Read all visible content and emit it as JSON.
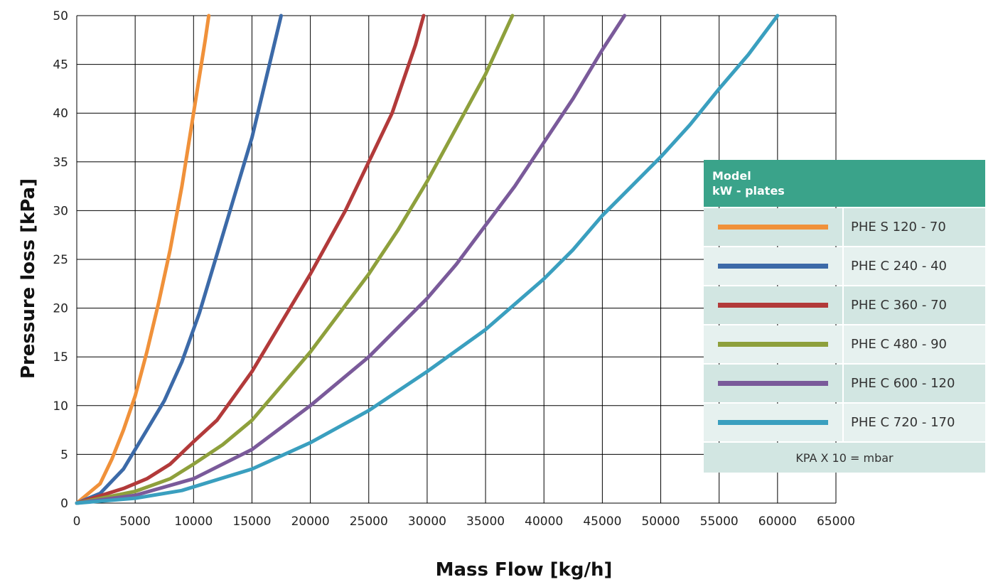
{
  "chart_data": {
    "type": "line",
    "title": "",
    "xlabel": "Mass Flow [kg/h]",
    "ylabel": "Pressure loss [kPa]",
    "xlim": [
      0,
      65000
    ],
    "ylim": [
      0,
      50
    ],
    "xticks": [
      "0",
      "5000",
      "10000",
      "15000",
      "20000",
      "25000",
      "30000",
      "35000",
      "40000",
      "45000",
      "50000",
      "55000",
      "60000",
      "65000"
    ],
    "yticks": [
      "0",
      "5",
      "10",
      "15",
      "20",
      "25",
      "30",
      "35",
      "40",
      "45",
      "50"
    ],
    "grid": true,
    "legend_placement": "right",
    "series": [
      {
        "name": "PHE S 120 - 70",
        "color": "#f0913a",
        "points": [
          [
            0,
            0
          ],
          [
            2000,
            2
          ],
          [
            3000,
            4.5
          ],
          [
            4000,
            7.5
          ],
          [
            5000,
            11
          ],
          [
            6000,
            15.5
          ],
          [
            7000,
            20.5
          ],
          [
            8000,
            26
          ],
          [
            9000,
            32.5
          ],
          [
            10000,
            40
          ],
          [
            11000,
            47.5
          ],
          [
            11300,
            50
          ]
        ]
      },
      {
        "name": "PHE C 240 - 40",
        "color": "#3c6aa8",
        "points": [
          [
            0,
            0
          ],
          [
            2000,
            1
          ],
          [
            4000,
            3.5
          ],
          [
            6000,
            7.5
          ],
          [
            7500,
            10.5
          ],
          [
            9000,
            14.5
          ],
          [
            10500,
            19.5
          ],
          [
            12000,
            25.5
          ],
          [
            13500,
            31.5
          ],
          [
            15000,
            37.5
          ],
          [
            16500,
            45
          ],
          [
            17500,
            50
          ]
        ]
      },
      {
        "name": "PHE C 360 - 70",
        "color": "#b23a3a",
        "points": [
          [
            0,
            0
          ],
          [
            4000,
            1.5
          ],
          [
            6000,
            2.5
          ],
          [
            8000,
            4
          ],
          [
            10000,
            6.3
          ],
          [
            12000,
            8.5
          ],
          [
            15000,
            13.5
          ],
          [
            18000,
            19.5
          ],
          [
            20000,
            23.5
          ],
          [
            23000,
            30
          ],
          [
            25000,
            35
          ],
          [
            27000,
            40
          ],
          [
            29000,
            47
          ],
          [
            29700,
            50
          ]
        ]
      },
      {
        "name": "PHE C 480 - 90",
        "color": "#8ea03c",
        "points": [
          [
            0,
            0
          ],
          [
            5000,
            1.2
          ],
          [
            8000,
            2.5
          ],
          [
            10000,
            4
          ],
          [
            12500,
            6
          ],
          [
            15000,
            8.5
          ],
          [
            17500,
            12
          ],
          [
            20000,
            15.5
          ],
          [
            22500,
            19.5
          ],
          [
            25000,
            23.5
          ],
          [
            27500,
            28
          ],
          [
            30000,
            33
          ],
          [
            32500,
            38.5
          ],
          [
            35000,
            44
          ],
          [
            37300,
            50
          ]
        ]
      },
      {
        "name": "PHE C 600 - 120",
        "color": "#7a5a9a",
        "points": [
          [
            0,
            0
          ],
          [
            5000,
            0.8
          ],
          [
            10000,
            2.5
          ],
          [
            15000,
            5.5
          ],
          [
            20000,
            10
          ],
          [
            25000,
            15
          ],
          [
            30000,
            21
          ],
          [
            32500,
            24.5
          ],
          [
            35000,
            28.5
          ],
          [
            37500,
            32.5
          ],
          [
            40000,
            37
          ],
          [
            42500,
            41.5
          ],
          [
            45000,
            46.5
          ],
          [
            46900,
            50
          ]
        ]
      },
      {
        "name": "PHE C 720 - 170",
        "color": "#3a9fbf",
        "points": [
          [
            0,
            0
          ],
          [
            5000,
            0.5
          ],
          [
            9000,
            1.3
          ],
          [
            15000,
            3.5
          ],
          [
            20000,
            6.2
          ],
          [
            25000,
            9.5
          ],
          [
            30000,
            13.5
          ],
          [
            35000,
            17.8
          ],
          [
            40000,
            23
          ],
          [
            42500,
            26
          ],
          [
            45000,
            29.5
          ],
          [
            50000,
            35.5
          ],
          [
            52500,
            38.8
          ],
          [
            55000,
            42.5
          ],
          [
            57500,
            46
          ],
          [
            60000,
            50
          ]
        ]
      }
    ]
  },
  "legend": {
    "header_line1": "Model",
    "header_line2": "kW - plates",
    "note": "KPA X 10 = mbar"
  }
}
